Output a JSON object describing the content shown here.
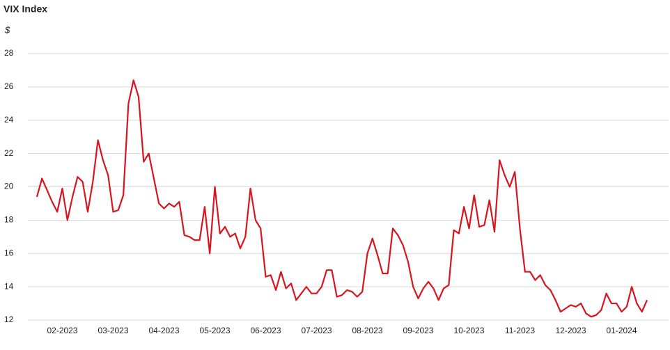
{
  "chart_data": {
    "type": "line",
    "title": "VIX Index",
    "y_label": "$",
    "categories": [
      null,
      null,
      null,
      null,
      null,
      "02-2023",
      null,
      null,
      null,
      null,
      null,
      null,
      null,
      null,
      null,
      "03-2023",
      null,
      null,
      null,
      null,
      null,
      null,
      null,
      null,
      null,
      "04-2023",
      null,
      null,
      null,
      null,
      null,
      null,
      null,
      null,
      null,
      "05-2023",
      null,
      null,
      null,
      null,
      null,
      null,
      null,
      null,
      null,
      "06-2023",
      null,
      null,
      null,
      null,
      null,
      null,
      null,
      null,
      null,
      "07-2023",
      null,
      null,
      null,
      null,
      null,
      null,
      null,
      null,
      null,
      "08-2023",
      null,
      null,
      null,
      null,
      null,
      null,
      null,
      null,
      null,
      "09-2023",
      null,
      null,
      null,
      null,
      null,
      null,
      null,
      null,
      null,
      "10-2023",
      null,
      null,
      null,
      null,
      null,
      null,
      null,
      null,
      null,
      "11-2023",
      null,
      null,
      null,
      null,
      null,
      null,
      null,
      null,
      null,
      "12-2023",
      null,
      null,
      null,
      null,
      null,
      null,
      null,
      null,
      null,
      "01-2024",
      null,
      null,
      null,
      null,
      null
    ],
    "series": [
      {
        "name": "VIX",
        "color": "#d7151f",
        "values": [
          19.4,
          20.5,
          19.8,
          19.1,
          18.5,
          19.9,
          18.0,
          19.4,
          20.6,
          20.3,
          18.5,
          20.3,
          22.8,
          21.6,
          20.7,
          18.5,
          18.6,
          19.5,
          25.0,
          26.4,
          25.4,
          21.5,
          22.0,
          20.5,
          19.0,
          18.7,
          19.0,
          18.8,
          19.1,
          17.1,
          17.0,
          16.8,
          16.8,
          18.8,
          16.0,
          20.0,
          17.2,
          17.6,
          17.0,
          17.2,
          16.3,
          17.0,
          19.9,
          18.0,
          17.5,
          14.6,
          14.7,
          13.8,
          14.9,
          13.9,
          14.2,
          13.2,
          13.6,
          14.0,
          13.6,
          13.6,
          14.0,
          15.0,
          15.0,
          13.4,
          13.5,
          13.8,
          13.7,
          13.4,
          13.7,
          16.0,
          16.9,
          15.9,
          14.8,
          14.8,
          17.5,
          17.1,
          16.5,
          15.5,
          14.0,
          13.3,
          13.9,
          14.3,
          13.9,
          13.2,
          13.9,
          14.1,
          17.4,
          17.2,
          18.8,
          17.5,
          19.5,
          17.6,
          17.7,
          19.2,
          17.3,
          21.6,
          20.7,
          20.0,
          20.9,
          17.5,
          14.9,
          14.9,
          14.4,
          14.7,
          14.1,
          13.8,
          13.2,
          12.5,
          12.7,
          12.9,
          12.8,
          13.0,
          12.4,
          12.2,
          12.3,
          12.6,
          13.6,
          13.0,
          13.0,
          12.5,
          12.8,
          14.0,
          13.0,
          12.5,
          13.2
        ]
      }
    ],
    "ylim": [
      12,
      28
    ],
    "yticks": [
      12,
      14,
      16,
      18,
      20,
      22,
      24,
      26,
      28
    ],
    "grid": true
  }
}
